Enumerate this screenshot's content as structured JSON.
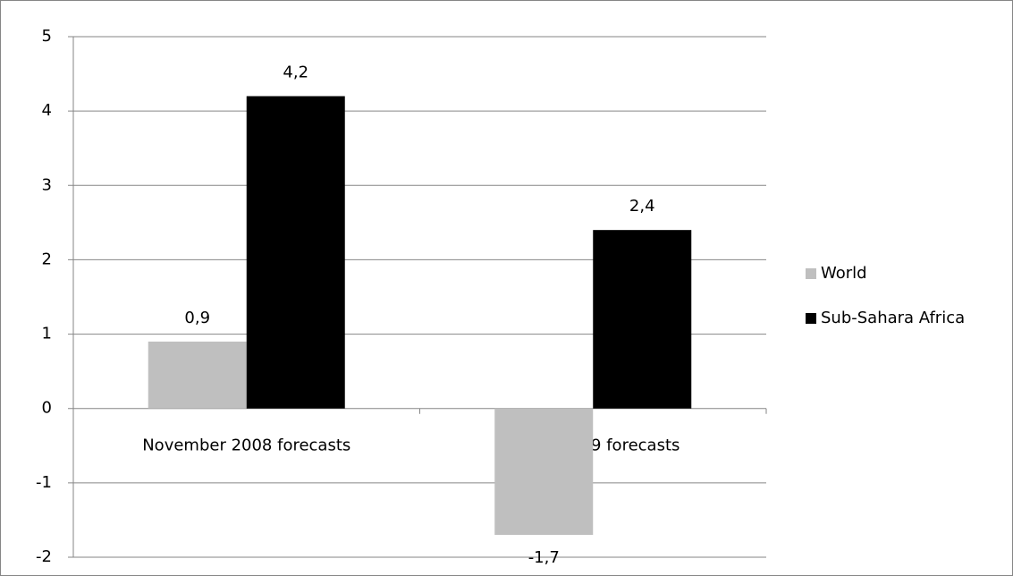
{
  "chart_data": {
    "type": "bar",
    "categories": [
      "November 2008 forecasts",
      "March 2009 forecasts"
    ],
    "series": [
      {
        "name": "World",
        "color": "#bfbfbf",
        "values": [
          0.9,
          -1.7
        ],
        "value_labels": [
          "0,9",
          "-1,7"
        ]
      },
      {
        "name": "Sub-Sahara Africa",
        "color": "#000000",
        "values": [
          4.2,
          2.4
        ],
        "value_labels": [
          "4,2",
          "2,4"
        ]
      }
    ],
    "ylim": [
      -2,
      5
    ],
    "yticks": [
      -2,
      -1,
      0,
      1,
      2,
      3,
      4,
      5
    ],
    "grid": true,
    "legend": "right"
  }
}
